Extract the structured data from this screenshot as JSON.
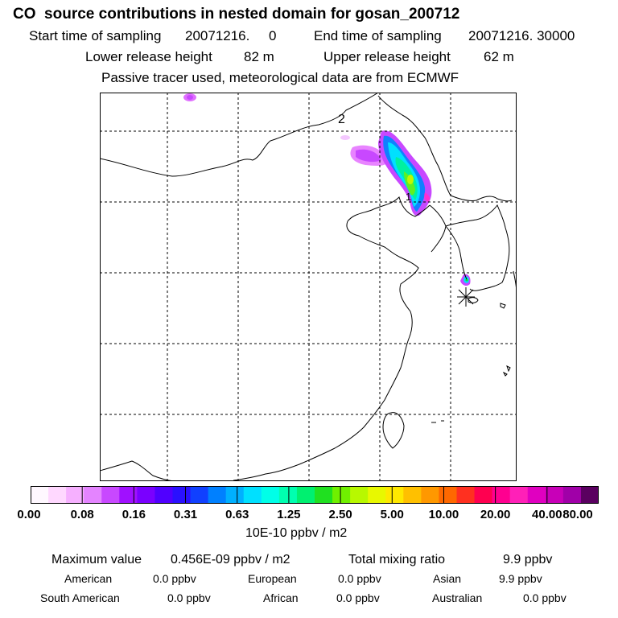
{
  "header": {
    "title": "CO  source contributions in nested domain for gosan_200712",
    "start_label": "Start time of sampling",
    "start_value": "20071216.     0",
    "end_label": "End time of sampling",
    "end_value": "20071216. 30000",
    "lower_label": "Lower release height",
    "lower_value": "82 m",
    "upper_label": "Upper release height",
    "upper_value": "62 m",
    "info": "Passive tracer used, meteorological data are from ECMWF"
  },
  "map": {
    "label_2": "2",
    "label_1": "1",
    "receptor_icon": "asterisk-marker-icon"
  },
  "colorbar": {
    "ticks": [
      "0.00",
      "0.08",
      "0.16",
      "0.31",
      "0.63",
      "1.25",
      "2.50",
      "5.00",
      "10.00",
      "20.00",
      "40.00",
      "80.00"
    ],
    "units": "10E-10 ppbv / m2",
    "colors": [
      "#fff8ff",
      "#ffd8ff",
      "#f6b0ff",
      "#e484ff",
      "#c848ff",
      "#a010ff",
      "#7a00ff",
      "#5000ff",
      "#2a10ff",
      "#1040ff",
      "#0080ff",
      "#00b0ff",
      "#00e0ff",
      "#00ffe8",
      "#00ffb0",
      "#00f070",
      "#20e020",
      "#70f000",
      "#b8f800",
      "#e8f800",
      "#ffe800",
      "#ffc000",
      "#ff9800",
      "#ff6800",
      "#ff3020",
      "#ff0050",
      "#ff0090",
      "#ff20b8",
      "#e000c0",
      "#c800b8",
      "#a000a8",
      "#5a0060"
    ]
  },
  "summary": {
    "max_label": "Maximum value",
    "max_value": "0.456E-09 ppbv / m2",
    "total_label": "Total mixing ratio",
    "total_value": "9.9 ppbv",
    "regions": [
      {
        "name": "American",
        "value": "0.0 ppbv"
      },
      {
        "name": "European",
        "value": "0.0 ppbv"
      },
      {
        "name": "Asian",
        "value": "9.9 ppbv"
      },
      {
        "name": "South American",
        "value": "0.0 ppbv"
      },
      {
        "name": "African",
        "value": "0.0 ppbv"
      },
      {
        "name": "Australian",
        "value": "0.0 ppbv"
      }
    ]
  }
}
